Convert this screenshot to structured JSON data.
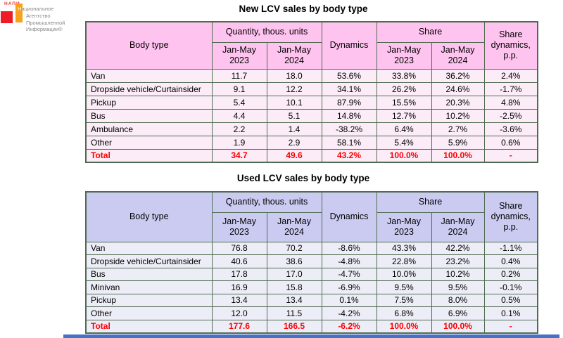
{
  "logo": {
    "wordmark": "НАПИ",
    "org_name_lines": [
      "Национальное",
      "Агентство",
      "Промышленной",
      "Информации®"
    ],
    "red_square_color": "#ee1c25",
    "orange_square_color": "#f9a11b"
  },
  "columns": {
    "body_type": "Body type",
    "quantity_group": "Quantity, thous. units",
    "dynamics": "Dynamics",
    "share_group": "Share",
    "share_dynamics": "Share\ndynamics,\np.p.",
    "period_2023": "Jan-May\n2023",
    "period_2024": "Jan-May\n2024"
  },
  "tables": [
    {
      "title": "New LCV sales by body type",
      "header_bg": "#ffc3ef",
      "row_bg": "#fbecf7",
      "total_color": "#fe0000",
      "rows": [
        {
          "cells": [
            "Van",
            "11.7",
            "18.0",
            "53.6%",
            "33.8%",
            "36.2%",
            "2.4%"
          ]
        },
        {
          "cells": [
            "Dropside vehicle/Curtainsider",
            "9.1",
            "12.2",
            "34.1%",
            "26.2%",
            "24.6%",
            "-1.7%"
          ]
        },
        {
          "cells": [
            "Pickup",
            "5.4",
            "10.1",
            "87.9%",
            "15.5%",
            "20.3%",
            "4.8%"
          ]
        },
        {
          "cells": [
            "Bus",
            "4.4",
            "5.1",
            "14.8%",
            "12.7%",
            "10.2%",
            "-2.5%"
          ]
        },
        {
          "cells": [
            "Ambulance",
            "2.2",
            "1.4",
            "-38.2%",
            "6.4%",
            "2.7%",
            "-3.6%"
          ]
        },
        {
          "cells": [
            "Other",
            "1.9",
            "2.9",
            "58.1%",
            "5.4%",
            "5.9%",
            "0.6%"
          ]
        },
        {
          "cells": [
            "Total",
            "34.7",
            "49.6",
            "43.2%",
            "100.0%",
            "100.0%",
            "-"
          ]
        }
      ]
    },
    {
      "title": "Used LCV sales by body type",
      "header_bg": "#cbcbf2",
      "row_bg": "#ededf7",
      "total_color": "#fe0000",
      "rows": [
        {
          "cells": [
            "Van",
            "76.8",
            "70.2",
            "-8.6%",
            "43.3%",
            "42.2%",
            "-1.1%"
          ]
        },
        {
          "cells": [
            "Dropside vehicle/Curtainsider",
            "40.6",
            "38.6",
            "-4.8%",
            "22.8%",
            "23.2%",
            "0.4%"
          ]
        },
        {
          "cells": [
            "Bus",
            "17.8",
            "17.0",
            "-4.7%",
            "10.0%",
            "10.2%",
            "0.2%"
          ]
        },
        {
          "cells": [
            "Minivan",
            "16.9",
            "15.8",
            "-6.9%",
            "9.5%",
            "9.5%",
            "-0.1%"
          ]
        },
        {
          "cells": [
            "Pickup",
            "13.4",
            "13.4",
            "0.1%",
            "7.5%",
            "8.0%",
            "0.5%"
          ]
        },
        {
          "cells": [
            "Other",
            "12.0",
            "11.5",
            "-4.2%",
            "6.8%",
            "6.9%",
            "0.1%"
          ]
        },
        {
          "cells": [
            "Total",
            "177.6",
            "166.5",
            "-6.2%",
            "100.0%",
            "100.0%",
            "-"
          ]
        }
      ]
    }
  ],
  "footer_bar_color": "#4472c4",
  "border_color": "#4f6b50"
}
